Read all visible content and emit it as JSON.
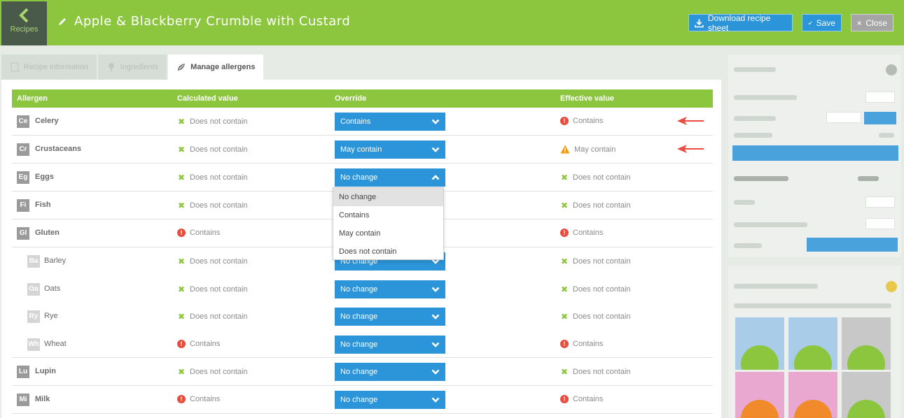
{
  "header": {
    "back_label": "Recipes",
    "title": "Apple & Blackberry Crumble with Custard",
    "download_label": "Download recipe sheet",
    "save_label": "Save",
    "close_label": "Close"
  },
  "tabs": [
    {
      "label": "Recipe information",
      "active": false
    },
    {
      "label": "Ingredients",
      "active": false
    },
    {
      "label": "Manage allergens",
      "active": true
    }
  ],
  "table": {
    "columns": [
      "Allergen",
      "Calculated value",
      "Override",
      "Effective value"
    ],
    "rows": [
      {
        "code": "Ce",
        "name": "Celery",
        "calc": "Does not contain",
        "calc_icon": "x",
        "override": "Contains",
        "effective": "Contains",
        "eff_icon": "bang",
        "sub": false,
        "arrow": true
      },
      {
        "code": "Cr",
        "name": "Crustaceans",
        "calc": "Does not contain",
        "calc_icon": "x",
        "override": "May contain",
        "effective": "May contain",
        "eff_icon": "warn",
        "sub": false,
        "arrow": true
      },
      {
        "code": "Eg",
        "name": "Eggs",
        "calc": "Does not contain",
        "calc_icon": "x",
        "override": "No change",
        "effective": "Does not contain",
        "eff_icon": "x",
        "sub": false,
        "open": true
      },
      {
        "code": "Fi",
        "name": "Fish",
        "calc": "Does not contain",
        "calc_icon": "x",
        "override": "",
        "effective": "Does not contain",
        "eff_icon": "x",
        "sub": false,
        "hidden_select": true
      },
      {
        "code": "Gl",
        "name": "Gluten",
        "calc": "Contains",
        "calc_icon": "bang",
        "override": "",
        "effective": "Contains",
        "eff_icon": "bang",
        "sub": false,
        "hidden_select": true
      },
      {
        "code": "Ba",
        "name": "Barley",
        "calc": "Does not contain",
        "calc_icon": "x",
        "override": "No change",
        "effective": "Does not contain",
        "eff_icon": "x",
        "sub": true
      },
      {
        "code": "Oa",
        "name": "Oats",
        "calc": "Does not contain",
        "calc_icon": "x",
        "override": "No change",
        "effective": "Does not contain",
        "eff_icon": "x",
        "sub": true
      },
      {
        "code": "Ry",
        "name": "Rye",
        "calc": "Does not contain",
        "calc_icon": "x",
        "override": "No change",
        "effective": "Does not contain",
        "eff_icon": "x",
        "sub": true
      },
      {
        "code": "Wh",
        "name": "Wheat",
        "calc": "Contains",
        "calc_icon": "bang",
        "override": "No change",
        "effective": "Contains",
        "eff_icon": "bang",
        "sub": true,
        "last": true
      },
      {
        "code": "Lu",
        "name": "Lupin",
        "calc": "Does not contain",
        "calc_icon": "x",
        "override": "No change",
        "effective": "Does not contain",
        "eff_icon": "x",
        "sub": false
      },
      {
        "code": "Mi",
        "name": "Milk",
        "calc": "Contains",
        "calc_icon": "bang",
        "override": "No change",
        "effective": "Contains",
        "eff_icon": "bang",
        "sub": false
      }
    ]
  },
  "dropdown": {
    "options": [
      "No change",
      "Contains",
      "May contain",
      "Does not contain"
    ],
    "highlighted": "No change"
  },
  "colors": {
    "brand_green": "#8cc63f",
    "accent_blue": "#2c94d8",
    "danger_red": "#e74c3c",
    "warn_orange": "#f39c12"
  }
}
